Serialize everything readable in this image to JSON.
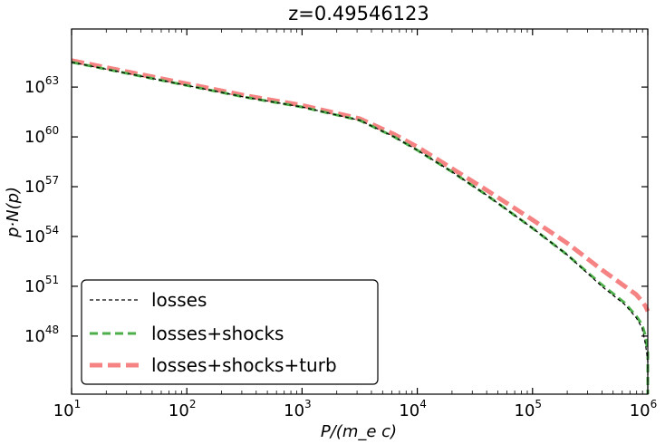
{
  "chart_data": {
    "type": "line",
    "title": "z=0.49546123",
    "xlabel": "P/(m_e c)",
    "ylabel": "p·N(p)",
    "xscale": "log",
    "yscale": "log",
    "xlim_log10": [
      1,
      6
    ],
    "ylim_log10": [
      44.5,
      66.5
    ],
    "x_ticks": [
      {
        "base": "10",
        "exp": "1",
        "value_log10": 1
      },
      {
        "base": "10",
        "exp": "2",
        "value_log10": 2
      },
      {
        "base": "10",
        "exp": "3",
        "value_log10": 3
      },
      {
        "base": "10",
        "exp": "4",
        "value_log10": 4
      },
      {
        "base": "10",
        "exp": "5",
        "value_log10": 5
      },
      {
        "base": "10",
        "exp": "6",
        "value_log10": 6
      }
    ],
    "y_ticks": [
      {
        "base": "10",
        "exp": "48",
        "value_log10": 48
      },
      {
        "base": "10",
        "exp": "51",
        "value_log10": 51
      },
      {
        "base": "10",
        "exp": "54",
        "value_log10": 54
      },
      {
        "base": "10",
        "exp": "57",
        "value_log10": 57
      },
      {
        "base": "10",
        "exp": "60",
        "value_log10": 60
      },
      {
        "base": "10",
        "exp": "63",
        "value_log10": 63
      }
    ],
    "legend_position": "lower-left",
    "series": [
      {
        "name": "losses",
        "color": "#000000",
        "style": "dashed-thin",
        "log10_x": [
          1.0,
          1.5,
          2.0,
          2.5,
          3.0,
          3.5,
          3.8,
          4.0,
          4.3,
          4.6,
          5.0,
          5.3,
          5.6,
          5.8,
          5.9,
          5.95,
          5.98,
          6.0,
          6.0
        ],
        "log10_y": [
          64.5,
          63.8,
          63.1,
          62.4,
          61.8,
          61.0,
          60.0,
          59.2,
          57.9,
          56.5,
          54.5,
          52.9,
          51.0,
          49.9,
          49.1,
          48.5,
          47.5,
          46.5,
          44.5
        ]
      },
      {
        "name": "losses+shocks",
        "color": "#4daf4a",
        "style": "dashed-medium",
        "log10_x": [
          1.0,
          1.5,
          2.0,
          2.5,
          3.0,
          3.5,
          3.8,
          4.0,
          4.3,
          4.6,
          5.0,
          5.3,
          5.6,
          5.8,
          5.9,
          5.95,
          5.98,
          6.0,
          6.0
        ],
        "log10_y": [
          64.5,
          63.8,
          63.1,
          62.4,
          61.8,
          61.0,
          60.0,
          59.2,
          57.9,
          56.5,
          54.5,
          52.9,
          51.1,
          50.0,
          49.2,
          48.7,
          48.0,
          47.0,
          44.5
        ]
      },
      {
        "name": "losses+shocks+turb",
        "color": "#f15a5a",
        "style": "dashed-thick",
        "log10_x": [
          1.0,
          1.5,
          2.0,
          2.5,
          3.0,
          3.5,
          3.8,
          4.0,
          4.3,
          4.6,
          5.0,
          5.3,
          5.6,
          5.8,
          5.9,
          5.95,
          5.98,
          6.0
        ],
        "log10_y": [
          64.6,
          63.9,
          63.2,
          62.5,
          61.9,
          61.1,
          60.15,
          59.4,
          58.1,
          56.8,
          55.0,
          53.6,
          52.0,
          51.0,
          50.5,
          50.1,
          49.8,
          49.5
        ]
      }
    ]
  }
}
